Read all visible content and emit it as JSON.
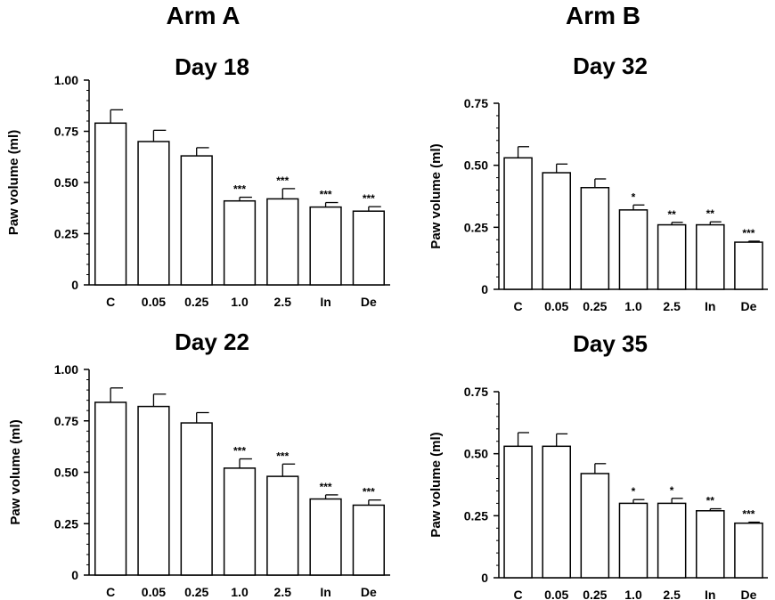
{
  "header": {
    "arm_a": "Arm A",
    "arm_b": "Arm B"
  },
  "chart_data": [
    {
      "type": "bar",
      "title": "Day 18",
      "ylabel": "Paw volume (ml)",
      "xlabel": "",
      "ylim": [
        0,
        1.0
      ],
      "yticks": [
        0,
        0.25,
        0.5,
        0.75,
        1.0
      ],
      "ytick_labels": [
        "0",
        "0.25",
        "0.50",
        "0.75",
        "1.00"
      ],
      "categories": [
        "C",
        "0.05",
        "0.25",
        "1.0",
        "2.5",
        "In",
        "De"
      ],
      "values": [
        0.79,
        0.7,
        0.63,
        0.41,
        0.42,
        0.38,
        0.36
      ],
      "errors": [
        0.065,
        0.055,
        0.04,
        0.018,
        0.05,
        0.022,
        0.022
      ],
      "significance": [
        "",
        "",
        "",
        "***",
        "***",
        "***",
        "***"
      ]
    },
    {
      "type": "bar",
      "title": "Day 32",
      "ylabel": "Paw volume (ml)",
      "xlabel": "",
      "ylim": [
        0,
        0.75
      ],
      "yticks": [
        0,
        0.25,
        0.5,
        0.75
      ],
      "ytick_labels": [
        "0",
        "0.25",
        "0.50",
        "0.75"
      ],
      "categories": [
        "C",
        "0.05",
        "0.25",
        "1.0",
        "2.5",
        "In",
        "De"
      ],
      "values": [
        0.53,
        0.47,
        0.41,
        0.32,
        0.26,
        0.26,
        0.19
      ],
      "errors": [
        0.045,
        0.035,
        0.035,
        0.02,
        0.01,
        0.012,
        0.004
      ],
      "significance": [
        "",
        "",
        "",
        "*",
        "**",
        "**",
        "***"
      ]
    },
    {
      "type": "bar",
      "title": "Day 22",
      "ylabel": "Paw volume (ml)",
      "xlabel": "",
      "ylim": [
        0,
        1.0
      ],
      "yticks": [
        0,
        0.25,
        0.5,
        0.75,
        1.0
      ],
      "ytick_labels": [
        "0",
        "0.25",
        "0.50",
        "0.75",
        "1.00"
      ],
      "categories": [
        "C",
        "0.05",
        "0.25",
        "1.0",
        "2.5",
        "In",
        "De"
      ],
      "values": [
        0.84,
        0.82,
        0.74,
        0.52,
        0.48,
        0.37,
        0.34
      ],
      "errors": [
        0.07,
        0.06,
        0.05,
        0.045,
        0.06,
        0.02,
        0.025
      ],
      "significance": [
        "",
        "",
        "",
        "***",
        "***",
        "***",
        "***"
      ]
    },
    {
      "type": "bar",
      "title": "Day 35",
      "ylabel": "Paw volume (ml)",
      "xlabel": "",
      "ylim": [
        0,
        0.75
      ],
      "yticks": [
        0,
        0.25,
        0.5,
        0.75
      ],
      "ytick_labels": [
        "0",
        "0.25",
        "0.50",
        "0.75"
      ],
      "categories": [
        "C",
        "0.05",
        "0.25",
        "1.0",
        "2.5",
        "In",
        "De"
      ],
      "values": [
        0.53,
        0.53,
        0.42,
        0.3,
        0.3,
        0.27,
        0.22
      ],
      "errors": [
        0.055,
        0.05,
        0.04,
        0.015,
        0.02,
        0.008,
        0.004
      ],
      "significance": [
        "",
        "",
        "",
        "*",
        "*",
        "**",
        "***"
      ]
    }
  ]
}
